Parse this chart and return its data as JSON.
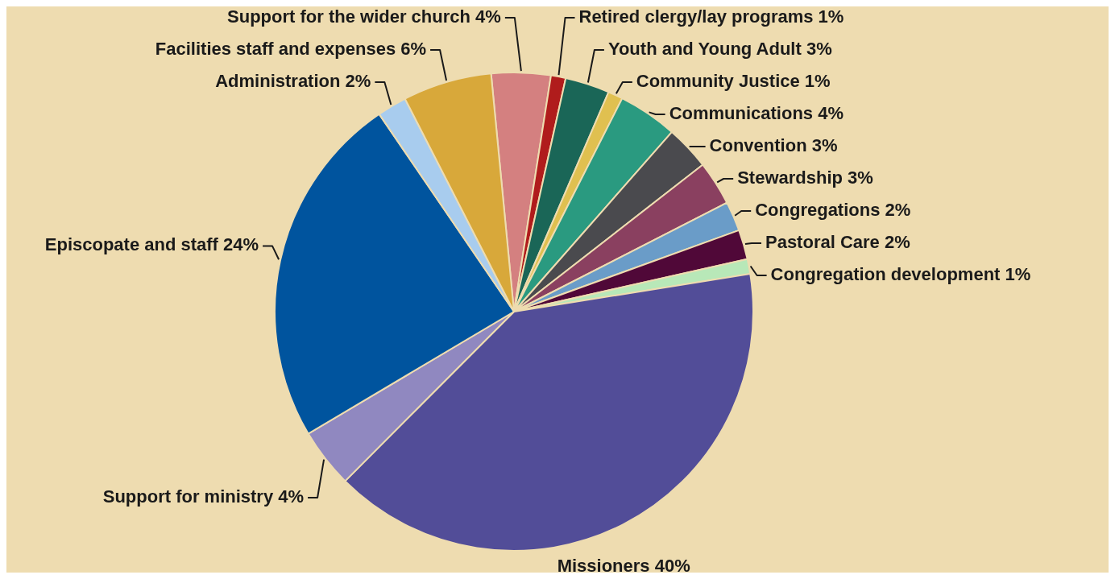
{
  "chart_data": {
    "type": "pie",
    "categories": [
      "Support for the wider church",
      "Retired clergy/lay programs",
      "Youth and Young Adult",
      "Community Justice",
      "Communications",
      "Convention",
      "Stewardship",
      "Congregations",
      "Pastoral Care",
      "Congregation development",
      "Missioners",
      "Support for ministry",
      "Episcopate and staff",
      "Administration",
      "Facilities staff and expenses"
    ],
    "values": [
      4,
      1,
      3,
      1,
      4,
      3,
      3,
      2,
      2,
      1,
      40,
      4,
      24,
      2,
      6
    ],
    "value_labels": [
      "4%",
      "1%",
      "3%",
      "1%",
      "4%",
      "3%",
      "3%",
      "2%",
      "2%",
      "1%",
      "40%",
      "4%",
      "24%",
      "2%",
      "6%"
    ],
    "colors": [
      "#d48080",
      "#b01c1c",
      "#1a6657",
      "#e0c050",
      "#2a9a80",
      "#4a4a4e",
      "#8a4060",
      "#6a9cc8",
      "#500838",
      "#b8e8b8",
      "#524d98",
      "#9088c0",
      "#00549e",
      "#a8ccee",
      "#d8a83a"
    ]
  }
}
